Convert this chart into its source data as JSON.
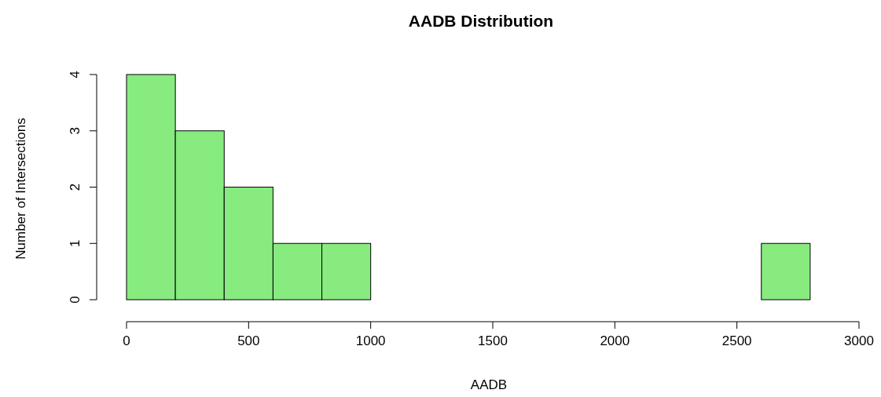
{
  "chart_data": {
    "type": "histogram",
    "title": "AADB Distribution",
    "xlabel": "AADB",
    "ylabel": "Number of Intersections",
    "bins": [
      0,
      200,
      400,
      600,
      800,
      1000,
      1200,
      1400,
      1600,
      1800,
      2000,
      2200,
      2400,
      2600,
      2800
    ],
    "values": [
      4,
      3,
      2,
      1,
      1,
      0,
      0,
      0,
      0,
      0,
      0,
      0,
      0,
      1
    ],
    "color": "#87eb7f",
    "xlim": [
      0,
      3000
    ],
    "xticks": [
      0,
      500,
      1000,
      1500,
      2000,
      2500,
      3000
    ],
    "ylim": [
      0,
      4
    ],
    "yticks": [
      0,
      1,
      2,
      3,
      4
    ],
    "grid": false
  }
}
